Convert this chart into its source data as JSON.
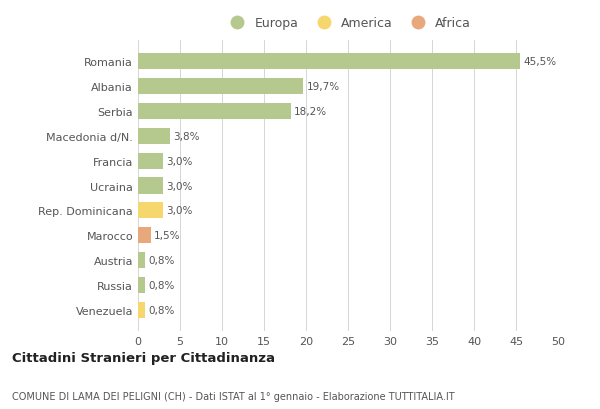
{
  "categories": [
    "Romania",
    "Albania",
    "Serbia",
    "Macedonia d/N.",
    "Francia",
    "Ucraina",
    "Rep. Dominicana",
    "Marocco",
    "Austria",
    "Russia",
    "Venezuela"
  ],
  "values": [
    45.5,
    19.7,
    18.2,
    3.8,
    3.0,
    3.0,
    3.0,
    1.5,
    0.8,
    0.8,
    0.8
  ],
  "labels": [
    "45,5%",
    "19,7%",
    "18,2%",
    "3,8%",
    "3,0%",
    "3,0%",
    "3,0%",
    "1,5%",
    "0,8%",
    "0,8%",
    "0,8%"
  ],
  "continents": [
    "Europa",
    "Europa",
    "Europa",
    "Europa",
    "Europa",
    "Europa",
    "America",
    "Africa",
    "Europa",
    "Europa",
    "America"
  ],
  "colors": {
    "Europa": "#b5c98e",
    "America": "#f5d76e",
    "Africa": "#e8a87c"
  },
  "legend_labels": [
    "Europa",
    "America",
    "Africa"
  ],
  "legend_colors": [
    "#b5c98e",
    "#f5d76e",
    "#e8a87c"
  ],
  "xlim": [
    0,
    50
  ],
  "xticks": [
    0,
    5,
    10,
    15,
    20,
    25,
    30,
    35,
    40,
    45,
    50
  ],
  "title": "Cittadini Stranieri per Cittadinanza",
  "subtitle": "COMUNE DI LAMA DEI PELIGNI (CH) - Dati ISTAT al 1° gennaio - Elaborazione TUTTITALIA.IT",
  "background_color": "#ffffff",
  "grid_color": "#d5d5d5"
}
